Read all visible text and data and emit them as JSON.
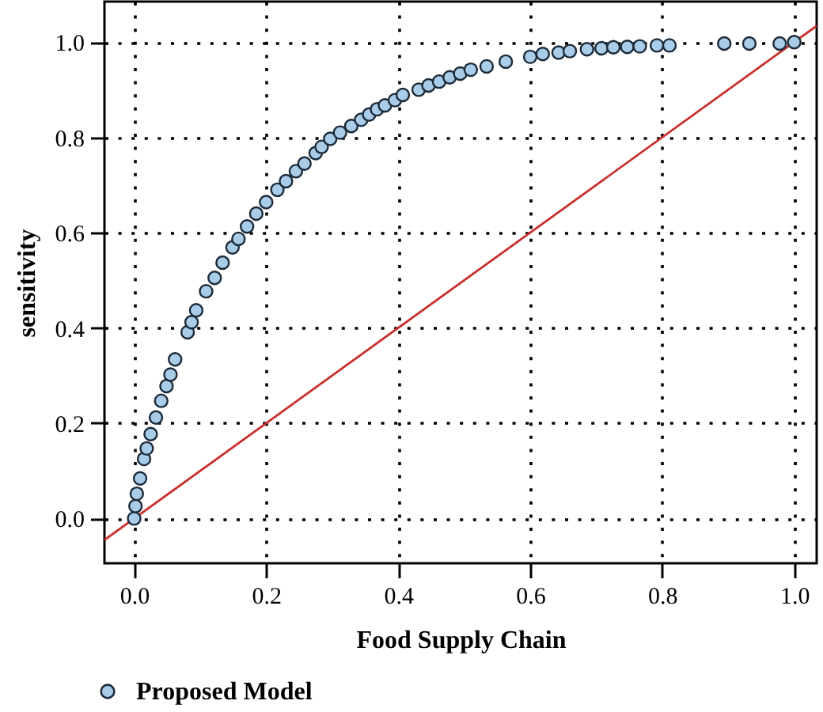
{
  "chart_data": {
    "type": "scatter",
    "xlabel": "Food Supply Chain",
    "ylabel": "sensitivity",
    "xlim": [
      -0.045,
      1.034
    ],
    "ylim": [
      -0.094,
      1.085
    ],
    "xticks": [
      {
        "value": 0,
        "label": "0.0"
      },
      0.2,
      0.4,
      0.6,
      0.8,
      {
        "value": 1,
        "label": "1.0"
      }
    ],
    "yticks": [
      {
        "value": 0,
        "label": "0.0"
      },
      0.2,
      0.4,
      0.6,
      0.8,
      {
        "value": 1,
        "label": "1.0"
      }
    ],
    "grid": true,
    "legend": "bottom left",
    "series": [
      {
        "name": "Proposed Model",
        "color": "#a9cde9",
        "marker": "circle",
        "x": [
          0,
          0.002,
          0.004,
          0.009,
          0.015,
          0.019,
          0.025,
          0.033,
          0.041,
          0.049,
          0.055,
          0.062,
          0.081,
          0.087,
          0.094,
          0.109,
          0.122,
          0.134,
          0.149,
          0.158,
          0.171,
          0.185,
          0.2,
          0.217,
          0.23,
          0.245,
          0.258,
          0.275,
          0.284,
          0.297,
          0.312,
          0.329,
          0.344,
          0.356,
          0.368,
          0.38,
          0.395,
          0.407,
          0.431,
          0.446,
          0.462,
          0.478,
          0.494,
          0.51,
          0.534,
          0.563,
          0.6,
          0.619,
          0.643,
          0.66,
          0.686,
          0.708,
          0.726,
          0.747,
          0.766,
          0.792,
          0.811,
          0.894,
          0.932,
          0.978,
          1.0
        ],
        "values": [
          0,
          0.026,
          0.052,
          0.084,
          0.125,
          0.147,
          0.177,
          0.212,
          0.247,
          0.278,
          0.302,
          0.334,
          0.391,
          0.412,
          0.437,
          0.477,
          0.505,
          0.537,
          0.569,
          0.587,
          0.613,
          0.64,
          0.664,
          0.69,
          0.708,
          0.729,
          0.745,
          0.767,
          0.78,
          0.797,
          0.81,
          0.824,
          0.837,
          0.848,
          0.859,
          0.867,
          0.878,
          0.889,
          0.9,
          0.909,
          0.917,
          0.926,
          0.934,
          0.942,
          0.949,
          0.959,
          0.969,
          0.975,
          0.978,
          0.981,
          0.985,
          0.987,
          0.989,
          0.99,
          0.991,
          0.993,
          0.993,
          0.997,
          0.997,
          0.997,
          1.0
        ]
      },
      {
        "type": "line",
        "color": "#c9302c",
        "marker": "none",
        "line_style": "solid",
        "x": [
          -0.045,
          1.034
        ],
        "values": [
          -0.045,
          1.034
        ]
      }
    ]
  }
}
